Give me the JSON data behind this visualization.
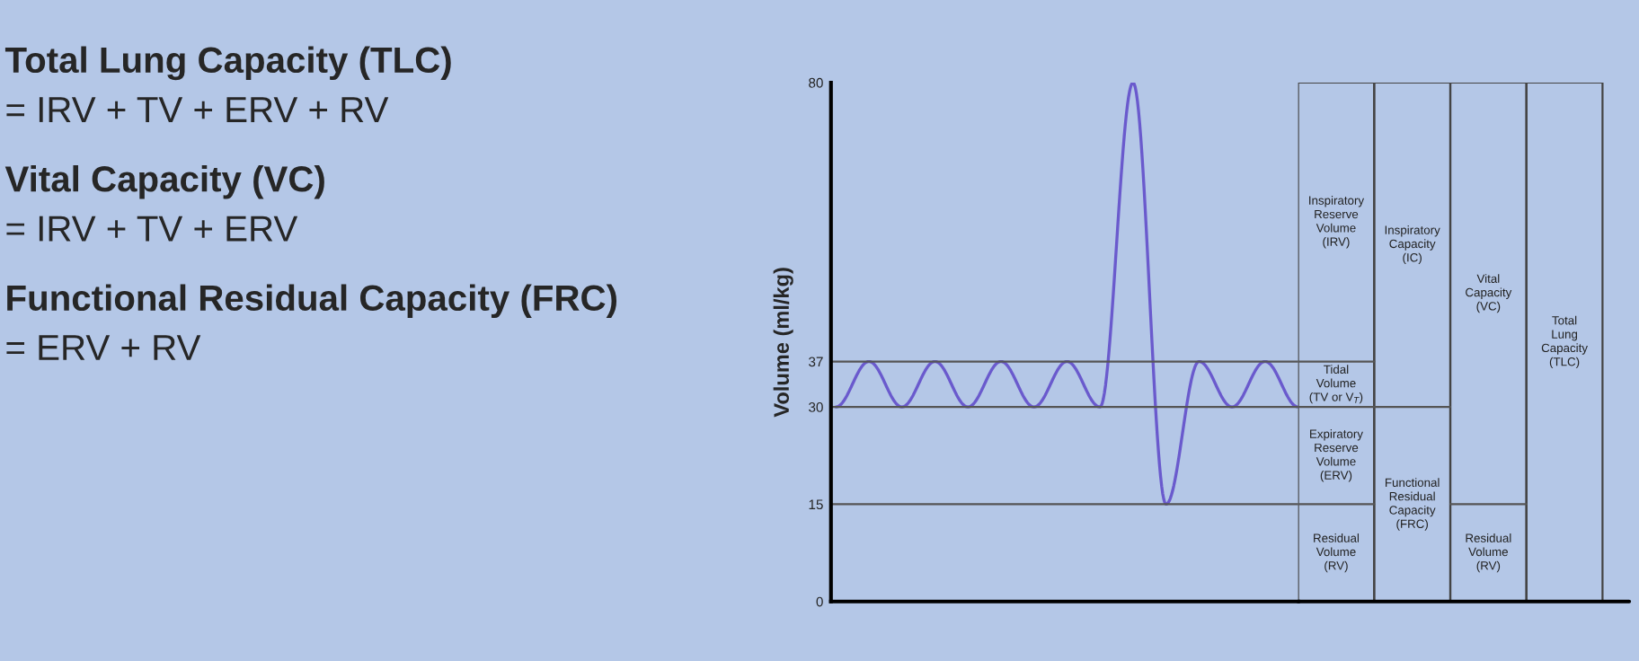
{
  "chart_data": {
    "type": "line",
    "ylabel": "Volume (ml/kg)",
    "categories": [
      null,
      null,
      null,
      null,
      null,
      null,
      null,
      null,
      null,
      null,
      null,
      null,
      null,
      null,
      null
    ],
    "series": [
      {
        "color": "#6a5acd",
        "values": [
          30,
          37,
          30,
          37,
          30,
          37,
          30,
          37,
          30,
          80,
          15,
          37,
          30,
          37,
          30
        ]
      }
    ],
    "ylim": [
      0,
      80
    ],
    "yticks": [
      0,
      15,
      30,
      37,
      80
    ],
    "tick_labels": "y",
    "grid": false,
    "legend": false,
    "ref_lines": [
      {
        "axis": "y",
        "value": 15,
        "color": "#555555"
      },
      {
        "axis": "y",
        "value": 30,
        "color": "#555555"
      },
      {
        "axis": "y",
        "value": 37,
        "color": "#555555"
      }
    ],
    "annotations": [
      "Total Lung Capacity (TLC)",
      "= IRV + TV + ERV + RV",
      "Vital Capacity (VC)",
      "= IRV + TV + ERV",
      "Functional Residual Capacity (FRC)",
      "= ERV + RV",
      "Inspiratory\nReserve\nVolume\n(IRV)",
      "Tidal\nVolume\n(TV or V$_{T}$)",
      "Expiratory\nReserve\nVolume\n(ERV)",
      "Residual\nVolume\n(RV)",
      "Inspiratory\nCapacity\n(IC)",
      "Functional\nResidual\nCapacity\n(FRC)",
      "Vital\nCapacity\n(VC)",
      "Residual\nVolume\n(RV)",
      "Total\nLung\nCapacity\n(TLC)"
    ]
  }
}
